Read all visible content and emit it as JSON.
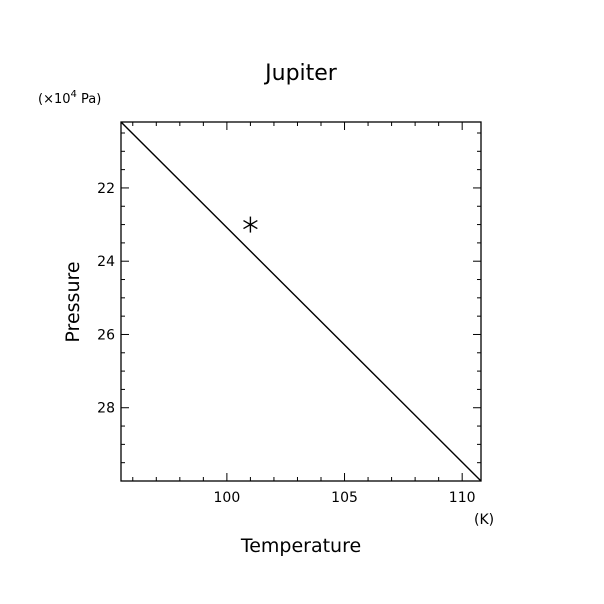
{
  "chart_data": {
    "type": "line",
    "title": "Jupiter",
    "xlabel": "Temperature",
    "ylabel": "Pressure",
    "x_unit": "(K)",
    "y_unit": "(×10",
    "y_unit_exp": "4",
    "y_unit_tail": " Pa)",
    "xlim": [
      95.5,
      110.8
    ],
    "ylim": [
      20.2,
      30.0
    ],
    "y_inverted": true,
    "grid": false,
    "x_ticks": [
      100,
      105,
      110
    ],
    "x_tick_labels": [
      "100",
      "105",
      "110"
    ],
    "y_ticks": [
      22,
      24,
      26,
      28
    ],
    "y_tick_labels": [
      "22",
      "24",
      "26",
      "28"
    ],
    "x_minor_step": 1,
    "y_minor_step": 0.5,
    "series": [
      {
        "x": [
          95.5,
          110.8
        ],
        "y": [
          20.2,
          30.0
        ]
      }
    ],
    "markers": [
      {
        "x": 101.0,
        "y": 23.0,
        "symbol": "asterisk"
      }
    ]
  }
}
